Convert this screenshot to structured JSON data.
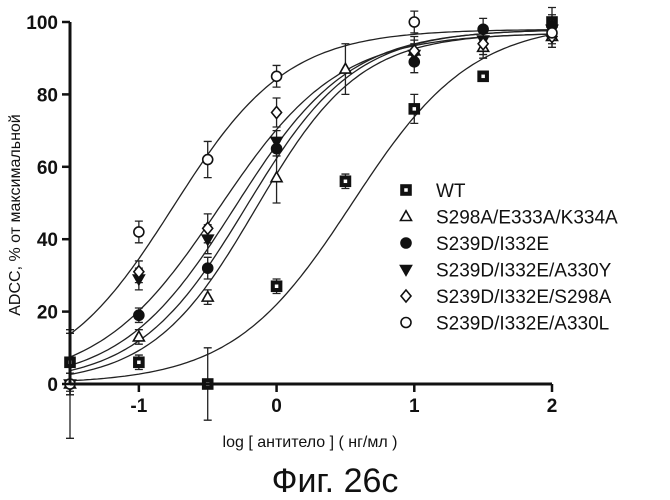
{
  "chart_data": {
    "type": "scatter",
    "xlabel": "log [ антитело ] ( нг/мл )",
    "ylabel": "ADCC, % от максимальной",
    "caption": "Фиг. 26с",
    "xlim": [
      -1.5,
      2.0
    ],
    "ylim": [
      0,
      100
    ],
    "x_ticks": [
      "-1",
      "0",
      "1",
      "2"
    ],
    "x_tick_values": [
      -1,
      0,
      1,
      2
    ],
    "y_ticks": [
      "0",
      "20",
      "40",
      "60",
      "80",
      "100"
    ],
    "y_tick_values": [
      0,
      20,
      40,
      60,
      80,
      100
    ],
    "grid": false,
    "legend_position": "right",
    "series": [
      {
        "name": "WT",
        "marker": "square-filled",
        "x": [
          -1.5,
          -1.0,
          -0.5,
          0.0,
          0.5,
          1.0,
          1.5,
          2.0
        ],
        "y": [
          6,
          6,
          0,
          27,
          56,
          76,
          85,
          100
        ],
        "err": [
          8,
          2,
          10,
          2,
          2,
          4,
          1,
          4
        ],
        "fit": {
          "bottom": 0,
          "top": 100,
          "ec50_log": 0.55,
          "hill": 1.0
        }
      },
      {
        "name": "S298A/E333A/K334A",
        "marker": "triangle-up-open",
        "x": [
          -1.5,
          -1.0,
          -0.5,
          0.0,
          0.5,
          1.0,
          1.5,
          2.0
        ],
        "y": [
          0,
          13,
          24,
          57,
          87,
          92,
          93,
          96
        ],
        "err": [
          15,
          2,
          2,
          7,
          7,
          4,
          3,
          3
        ],
        "fit": {
          "bottom": 0,
          "top": 97,
          "ec50_log": -0.15,
          "hill": 1.15
        }
      },
      {
        "name": "S239D/I332E",
        "marker": "circle-filled",
        "x": [
          -1.5,
          -1.0,
          -0.5,
          0.0,
          1.0,
          1.5,
          2.0
        ],
        "y": [
          0,
          19,
          32,
          65,
          89,
          98,
          99
        ],
        "err": [
          3,
          2,
          3,
          2,
          3,
          3,
          3
        ],
        "fit": {
          "bottom": 0,
          "top": 98,
          "ec50_log": -0.22,
          "hill": 1.1
        }
      },
      {
        "name": "S239D/I332E/A330Y",
        "marker": "triangle-down-filled",
        "x": [
          -1.5,
          -1.0,
          -0.5,
          0.0,
          1.0,
          1.5,
          2.0
        ],
        "y": [
          0,
          29,
          40,
          67,
          91,
          95,
          98
        ],
        "err": [
          3,
          3,
          4,
          3,
          3,
          3,
          3
        ],
        "fit": {
          "bottom": 0,
          "top": 98,
          "ec50_log": -0.3,
          "hill": 1.05
        }
      },
      {
        "name": "S239D/I332E/S298A",
        "marker": "diamond-open",
        "x": [
          -1.5,
          -1.0,
          -0.5,
          0.0,
          1.0,
          1.5,
          2.0
        ],
        "y": [
          0,
          31,
          43,
          75,
          92,
          94,
          96
        ],
        "err": [
          3,
          3,
          4,
          4,
          3,
          3,
          3
        ],
        "fit": {
          "bottom": 0,
          "top": 97,
          "ec50_log": -0.42,
          "hill": 1.0
        }
      },
      {
        "name": "S239D/I332E/A330L",
        "marker": "circle-open",
        "x": [
          -1.5,
          -1.0,
          -0.5,
          0.0,
          1.0,
          2.0
        ],
        "y": [
          0,
          42,
          62,
          85,
          100,
          97
        ],
        "err": [
          3,
          3,
          5,
          3,
          3,
          3
        ],
        "fit": {
          "bottom": 0,
          "top": 98,
          "ec50_log": -0.75,
          "hill": 1.05
        }
      }
    ]
  }
}
